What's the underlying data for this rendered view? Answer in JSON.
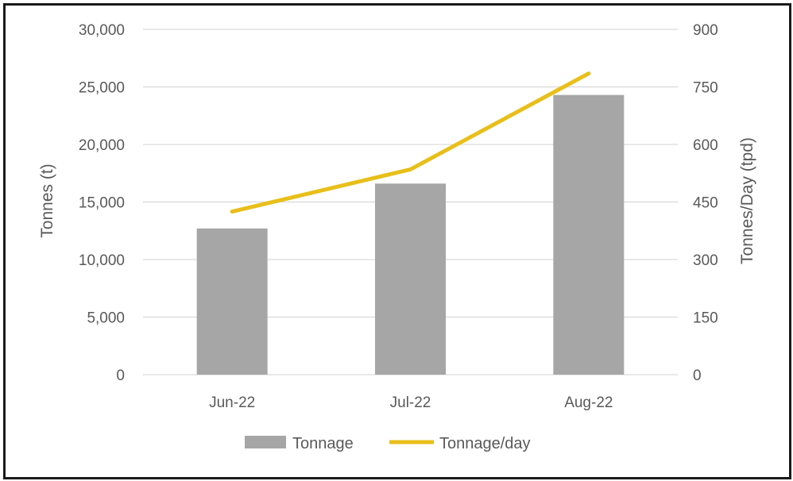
{
  "chart_data": {
    "type": "bar",
    "categories": [
      "Jun-22",
      "Jul-22",
      "Aug-22"
    ],
    "series": [
      {
        "name": "Tonnage",
        "type": "bar",
        "axis": "left",
        "color": "#a6a6a6",
        "values": [
          12700,
          16600,
          24300
        ]
      },
      {
        "name": "Tonnage/day",
        "type": "line",
        "axis": "right",
        "color": "#e8bf1a",
        "values": [
          425,
          535,
          785
        ]
      }
    ],
    "ylabel": "Tonnes (t)",
    "y2label": "Tonnes/Day (tpd)",
    "ylim": [
      0,
      30000
    ],
    "y2lim": [
      0,
      900
    ],
    "yticks": [
      "0",
      "5,000",
      "10,000",
      "15,000",
      "20,000",
      "25,000",
      "30,000"
    ],
    "y2ticks": [
      "0",
      "150",
      "300",
      "450",
      "600",
      "750",
      "900"
    ],
    "grid": true,
    "legend": "bottom-center"
  }
}
